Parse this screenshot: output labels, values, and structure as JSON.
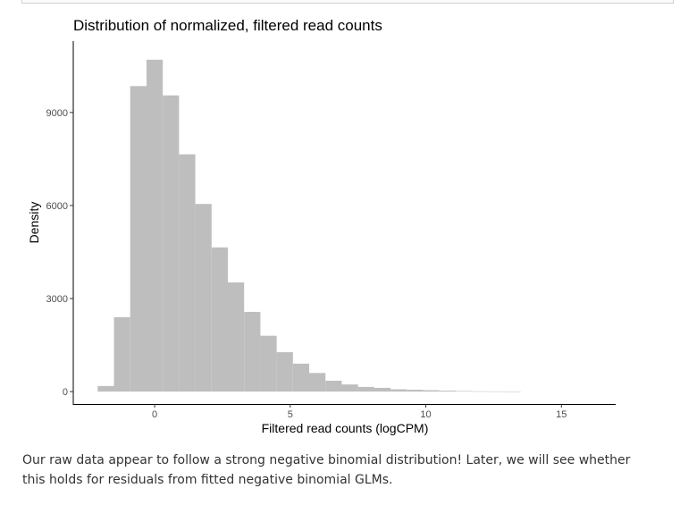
{
  "caption": "Our raw data appear to follow a strong negative binomial distribution! Later, we will see whether this holds for residuals from fitted negative binomial GLMs.",
  "chart_data": {
    "type": "bar",
    "title": "Distribution of normalized, filtered read counts",
    "xlabel": "Filtered read counts (logCPM)",
    "ylabel": "Density",
    "xlim": [
      -3,
      17
    ],
    "ylim": [
      -400,
      11300
    ],
    "xticks": [
      0,
      5,
      10,
      15
    ],
    "yticks": [
      0,
      3000,
      6000,
      9000
    ],
    "bar_color": "#bebebe",
    "grid": false,
    "bin_width": 0.6,
    "bins": [
      {
        "start": -2.1,
        "value": 180
      },
      {
        "start": -1.5,
        "value": 2400
      },
      {
        "start": -0.9,
        "value": 9850
      },
      {
        "start": -0.3,
        "value": 10700
      },
      {
        "start": 0.3,
        "value": 9550
      },
      {
        "start": 0.9,
        "value": 7650
      },
      {
        "start": 1.5,
        "value": 6050
      },
      {
        "start": 2.1,
        "value": 4650
      },
      {
        "start": 2.7,
        "value": 3520
      },
      {
        "start": 3.3,
        "value": 2570
      },
      {
        "start": 3.9,
        "value": 1800
      },
      {
        "start": 4.5,
        "value": 1270
      },
      {
        "start": 5.1,
        "value": 900
      },
      {
        "start": 5.7,
        "value": 600
      },
      {
        "start": 6.3,
        "value": 350
      },
      {
        "start": 6.9,
        "value": 230
      },
      {
        "start": 7.5,
        "value": 150
      },
      {
        "start": 8.1,
        "value": 120
      },
      {
        "start": 8.7,
        "value": 75
      },
      {
        "start": 9.3,
        "value": 60
      },
      {
        "start": 9.9,
        "value": 45
      },
      {
        "start": 10.5,
        "value": 30
      },
      {
        "start": 11.1,
        "value": 18
      },
      {
        "start": 11.7,
        "value": 10
      },
      {
        "start": 12.3,
        "value": 6
      },
      {
        "start": 12.9,
        "value": 3
      }
    ]
  }
}
